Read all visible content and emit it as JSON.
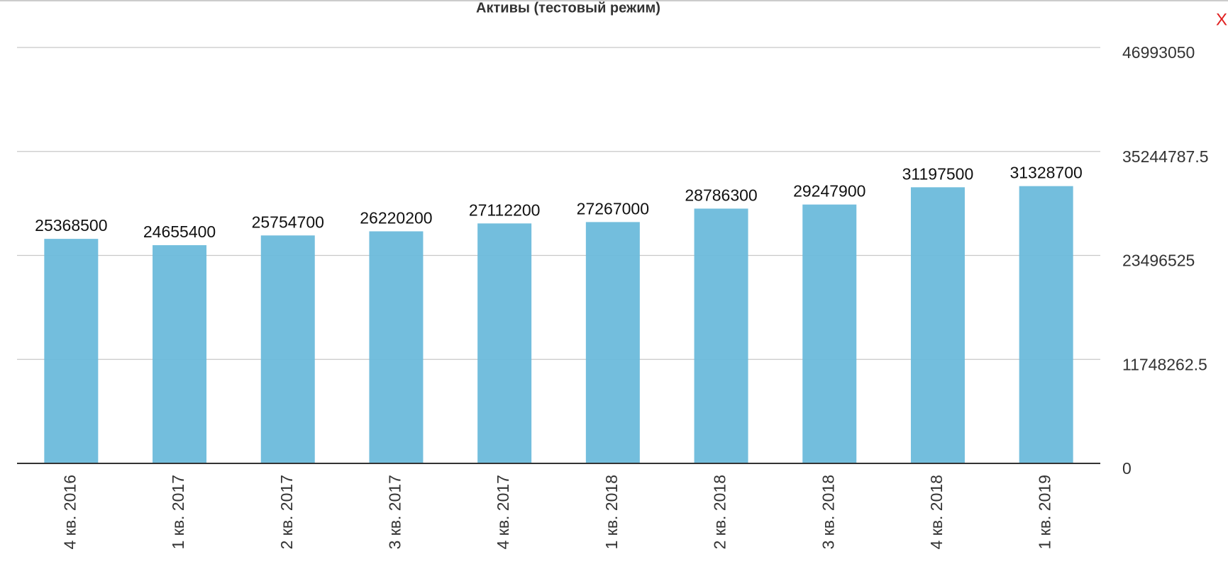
{
  "close_button": "X",
  "chart_data": {
    "type": "bar",
    "title": "Активы (тестовый режим)",
    "categories": [
      "4 кв. 2016",
      "1 кв. 2017",
      "2 кв. 2017",
      "3 кв. 2017",
      "4 кв. 2017",
      "1 кв. 2018",
      "2 кв. 2018",
      "3 кв. 2018",
      "4 кв. 2018",
      "1 кв. 2019"
    ],
    "values": [
      25368500,
      24655400,
      25754700,
      26220200,
      27112200,
      27267000,
      28786300,
      29247900,
      31197500,
      31328700
    ],
    "color": "#6bbadb",
    "ylim": [
      0,
      46993050
    ],
    "yticks": [
      0,
      11748262.5,
      23496525,
      35244787.5,
      46993050
    ],
    "grid": true
  }
}
